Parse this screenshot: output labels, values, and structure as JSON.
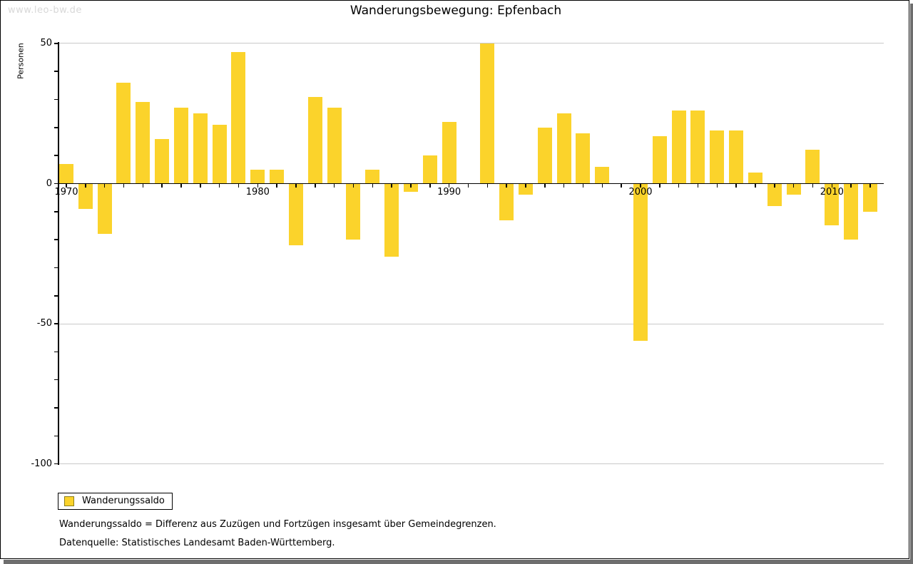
{
  "watermark": "www.leo-bw.de",
  "title": "Wanderungsbewegung: Epfenbach",
  "legend": {
    "label": "Wanderungssaldo"
  },
  "footnotes": {
    "definition": "Wanderungssaldo = Differenz aus Zuzügen und Fortzügen insgesamt über Gemeindegrenzen.",
    "source": "Datenquelle: Statistisches Landesamt Baden-Württemberg."
  },
  "colors": {
    "bar": "#FBD32B",
    "swatch_border": "#8b7d1a",
    "grid": "#c9c9c9",
    "axis": "#000000",
    "watermark": "#d8d8d8",
    "frame_shadow": "#6e6e6e"
  },
  "chart_data": {
    "type": "bar",
    "title": "Wanderungsbewegung: Epfenbach",
    "xlabel": "",
    "ylabel": "Personen",
    "ylim": [
      -100,
      50
    ],
    "y_major_ticks": [
      50,
      0,
      -50,
      -100
    ],
    "y_minor_step": 10,
    "x_labeled_ticks": [
      1970,
      1980,
      1990,
      2000,
      2010
    ],
    "grid": "horizontal major gridlines only",
    "legend_position": "bottom-left",
    "categories": [
      1970,
      1971,
      1972,
      1973,
      1974,
      1975,
      1976,
      1977,
      1978,
      1979,
      1980,
      1981,
      1982,
      1983,
      1984,
      1985,
      1986,
      1987,
      1988,
      1989,
      1990,
      1991,
      1992,
      1993,
      1994,
      1995,
      1996,
      1997,
      1998,
      1999,
      2000,
      2001,
      2002,
      2003,
      2004,
      2005,
      2006,
      2007,
      2008,
      2009,
      2010,
      2011,
      2012
    ],
    "series": [
      {
        "name": "Wanderungssaldo",
        "values": [
          7,
          -9,
          -18,
          36,
          29,
          16,
          27,
          25,
          21,
          47,
          5,
          5,
          -22,
          31,
          27,
          -20,
          5,
          -26,
          -3,
          10,
          22,
          0,
          50,
          -13,
          -4,
          20,
          25,
          18,
          6,
          0,
          -56,
          17,
          26,
          26,
          19,
          19,
          4,
          -8,
          -4,
          12,
          -15,
          -20,
          -10
        ]
      }
    ]
  }
}
